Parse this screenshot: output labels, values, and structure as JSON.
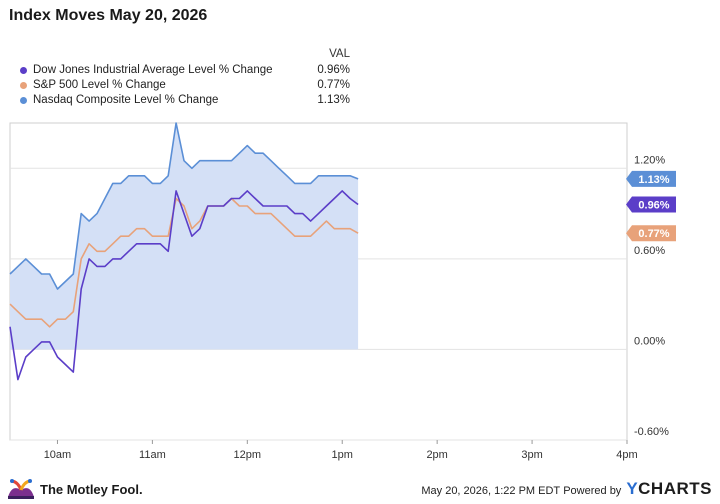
{
  "title": "Index Moves May 20, 2026",
  "legend_header": "VAL",
  "chart_data": {
    "type": "line",
    "title": "Index Moves May 20, 2026",
    "x_domain": [
      "9:30am",
      "4pm"
    ],
    "x_ticks": [
      "10am",
      "11am",
      "12pm",
      "1pm",
      "2pm",
      "3pm",
      "4pm"
    ],
    "ylim": [
      -0.6,
      1.5
    ],
    "y_ticks": [
      "-0.60%",
      "0.00%",
      "0.60%",
      "1.20%"
    ],
    "grid": true,
    "legend_position": "top-left",
    "series": [
      {
        "name": "Dow Jones Industrial Average Level % Change",
        "last_value": "0.96%",
        "color": "#5b3ec8",
        "x": [
          "9:30",
          "9:35",
          "9:40",
          "9:45",
          "9:50",
          "9:55",
          "10:00",
          "10:05",
          "10:10",
          "10:15",
          "10:20",
          "10:25",
          "10:30",
          "10:35",
          "10:40",
          "10:45",
          "10:50",
          "10:55",
          "11:00",
          "11:05",
          "11:10",
          "11:15",
          "11:20",
          "11:25",
          "11:30",
          "11:35",
          "11:40",
          "11:45",
          "11:50",
          "11:55",
          "12:00",
          "12:05",
          "12:10",
          "12:15",
          "12:20",
          "12:25",
          "12:30",
          "12:35",
          "12:40",
          "12:45",
          "12:50",
          "12:55",
          "13:00",
          "13:05",
          "13:10"
        ],
        "values": [
          0.15,
          -0.2,
          -0.05,
          0.0,
          0.05,
          0.05,
          -0.05,
          -0.1,
          -0.15,
          0.4,
          0.6,
          0.55,
          0.55,
          0.6,
          0.6,
          0.65,
          0.7,
          0.7,
          0.7,
          0.7,
          0.65,
          1.05,
          0.9,
          0.75,
          0.8,
          0.95,
          0.95,
          0.95,
          1.0,
          1.0,
          1.05,
          1.0,
          0.95,
          0.95,
          0.95,
          0.95,
          0.9,
          0.9,
          0.85,
          0.9,
          0.95,
          1.0,
          1.05,
          1.0,
          0.96
        ]
      },
      {
        "name": "S&P 500 Level % Change",
        "last_value": "0.77%",
        "color": "#e8a27a",
        "x": [
          "9:30",
          "9:35",
          "9:40",
          "9:45",
          "9:50",
          "9:55",
          "10:00",
          "10:05",
          "10:10",
          "10:15",
          "10:20",
          "10:25",
          "10:30",
          "10:35",
          "10:40",
          "10:45",
          "10:50",
          "10:55",
          "11:00",
          "11:05",
          "11:10",
          "11:15",
          "11:20",
          "11:25",
          "11:30",
          "11:35",
          "11:40",
          "11:45",
          "11:50",
          "11:55",
          "12:00",
          "12:05",
          "12:10",
          "12:15",
          "12:20",
          "12:25",
          "12:30",
          "12:35",
          "12:40",
          "12:45",
          "12:50",
          "12:55",
          "13:00",
          "13:05",
          "13:10"
        ],
        "values": [
          0.3,
          0.25,
          0.2,
          0.2,
          0.2,
          0.15,
          0.2,
          0.2,
          0.25,
          0.6,
          0.7,
          0.65,
          0.65,
          0.7,
          0.75,
          0.75,
          0.8,
          0.8,
          0.75,
          0.75,
          0.75,
          1.0,
          0.95,
          0.8,
          0.85,
          0.95,
          0.95,
          0.95,
          1.0,
          0.95,
          0.95,
          0.9,
          0.9,
          0.9,
          0.85,
          0.8,
          0.75,
          0.75,
          0.75,
          0.8,
          0.85,
          0.8,
          0.8,
          0.8,
          0.77
        ]
      },
      {
        "name": "Nasdaq Composite Level % Change",
        "last_value": "1.13%",
        "color": "#5b8fd6",
        "x": [
          "9:30",
          "9:35",
          "9:40",
          "9:45",
          "9:50",
          "9:55",
          "10:00",
          "10:05",
          "10:10",
          "10:15",
          "10:20",
          "10:25",
          "10:30",
          "10:35",
          "10:40",
          "10:45",
          "10:50",
          "10:55",
          "11:00",
          "11:05",
          "11:10",
          "11:15",
          "11:20",
          "11:25",
          "11:30",
          "11:35",
          "11:40",
          "11:45",
          "11:50",
          "11:55",
          "12:00",
          "12:05",
          "12:10",
          "12:15",
          "12:20",
          "12:25",
          "12:30",
          "12:35",
          "12:40",
          "12:45",
          "12:50",
          "12:55",
          "13:00",
          "13:05",
          "13:10"
        ],
        "values": [
          0.5,
          0.55,
          0.6,
          0.55,
          0.5,
          0.5,
          0.4,
          0.45,
          0.5,
          0.9,
          0.85,
          0.9,
          1.0,
          1.1,
          1.1,
          1.15,
          1.15,
          1.15,
          1.1,
          1.1,
          1.15,
          1.5,
          1.25,
          1.2,
          1.25,
          1.25,
          1.25,
          1.25,
          1.25,
          1.3,
          1.35,
          1.3,
          1.3,
          1.25,
          1.2,
          1.15,
          1.1,
          1.1,
          1.1,
          1.15,
          1.15,
          1.15,
          1.15,
          1.15,
          1.13
        ]
      }
    ]
  },
  "footer": {
    "brand": "The Motley Fool.",
    "timestamp": "May 20, 2026, 1:22 PM EDT",
    "powered_by": "Powered by",
    "ycharts_y": "Y",
    "ycharts_rest": "CHARTS"
  },
  "colors": {
    "fill": "#d4e0f6",
    "grid": "#e3e3e3",
    "border": "#cfcfcf"
  },
  "icons": {
    "logo": "jester-cap-icon"
  }
}
